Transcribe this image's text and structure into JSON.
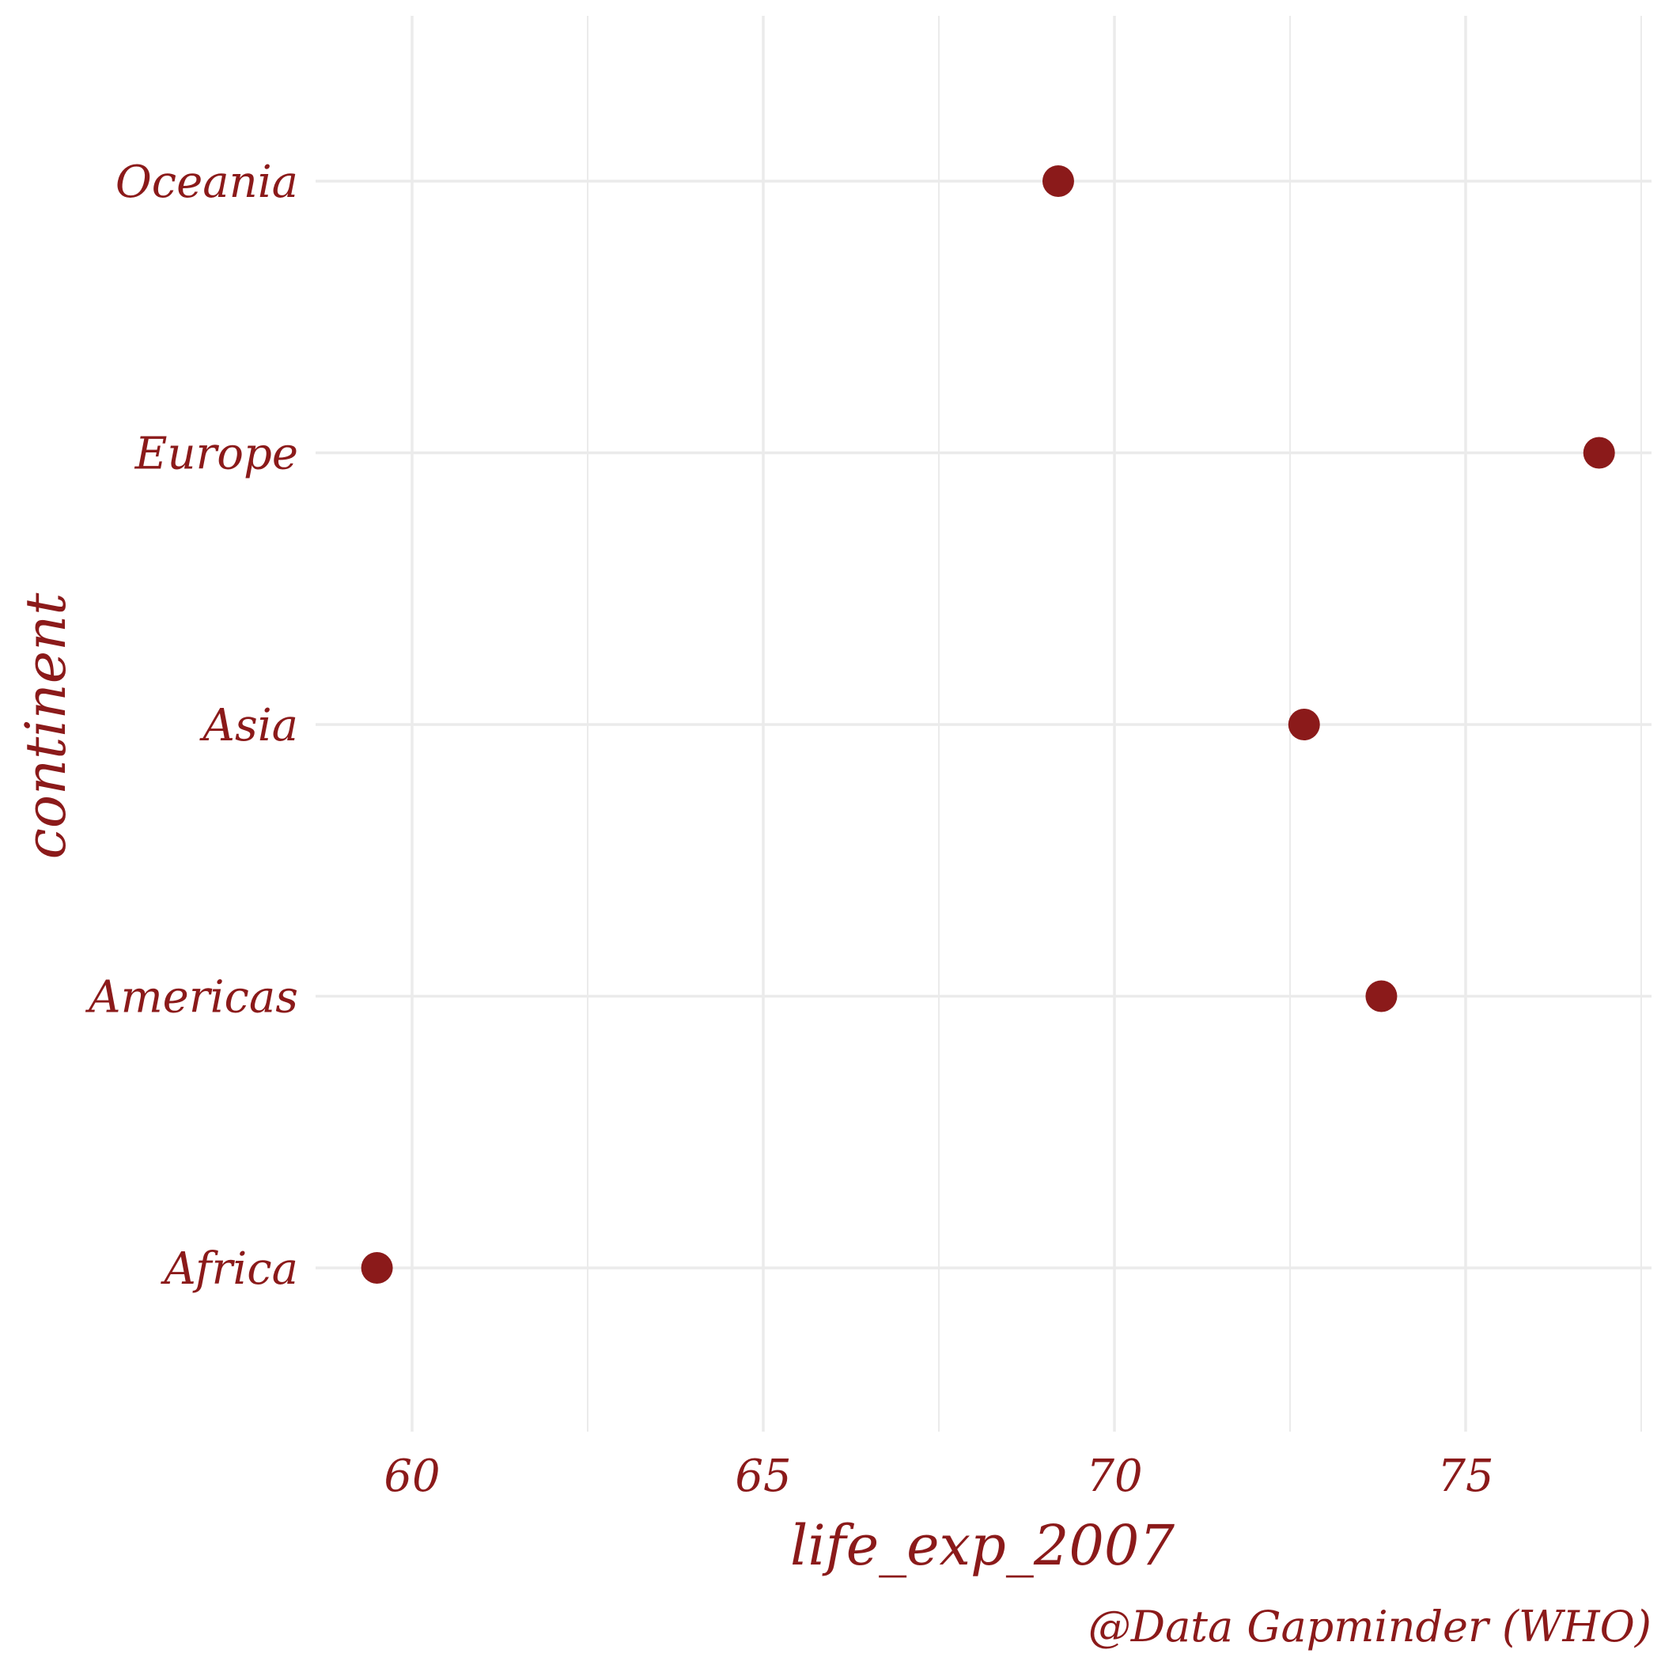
{
  "chart_data": {
    "type": "scatter",
    "categories": [
      "Africa",
      "Americas",
      "Asia",
      "Europe",
      "Oceania"
    ],
    "values": [
      59.5,
      73.8,
      72.7,
      76.9,
      69.2
    ],
    "xlabel": "life_exp_2007",
    "ylabel": "continent",
    "caption": "@Data Gapminder (WHO)",
    "x_ticks": [
      60,
      65,
      70,
      75
    ],
    "xlim": [
      58.6,
      77.7
    ],
    "grid": true,
    "point_color": "#8b1a1a",
    "text_color": "#8b1a1a",
    "grid_color": "#ebebeb"
  }
}
